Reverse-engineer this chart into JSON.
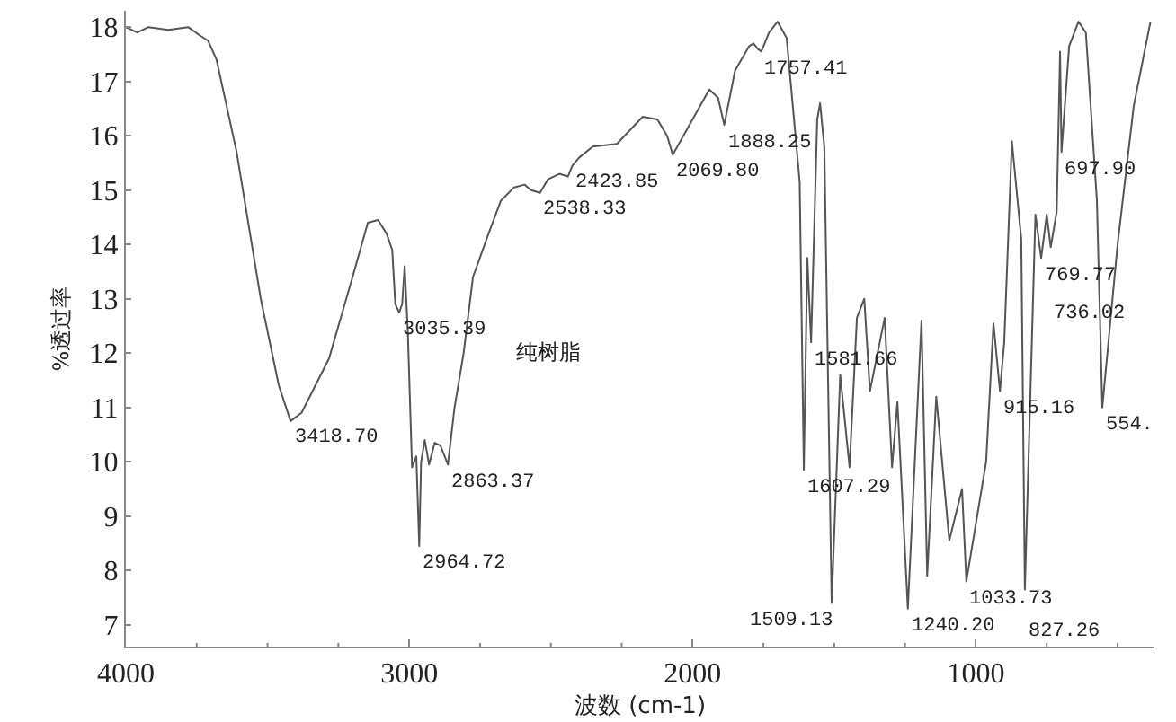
{
  "chart_data": {
    "type": "line",
    "xlabel": "波数 (cm-1)",
    "ylabel": "%透过率",
    "xlim": [
      4000,
      370
    ],
    "ylim": [
      6.6,
      18.3
    ],
    "xticks": [
      4000,
      3000,
      2000,
      1000,
      {
        "value": 3750,
        "label": null
      },
      {
        "value": 3500,
        "label": null
      },
      {
        "value": 3250,
        "label": null
      },
      {
        "value": 2750,
        "label": null
      },
      {
        "value": 2500,
        "label": null
      },
      {
        "value": 2250,
        "label": null
      },
      {
        "value": 1750,
        "label": null
      },
      {
        "value": 1500,
        "label": null
      },
      {
        "value": 1250,
        "label": null
      },
      {
        "value": 750,
        "label": null
      },
      {
        "value": 500,
        "label": null
      }
    ],
    "yticks": [
      7,
      8,
      9,
      10,
      11,
      12,
      13,
      14,
      15,
      16,
      17,
      18
    ],
    "grid": false,
    "legend": false,
    "marker": "none",
    "line_style": "solid",
    "series": [
      {
        "name": "纯树脂",
        "color": "#555555",
        "x": [
          4000,
          3960,
          3920,
          3850,
          3780,
          3740,
          3710,
          3680,
          3609,
          3524,
          3460,
          3418.7,
          3380,
          3283,
          3200,
          3146,
          3110,
          3080,
          3060,
          3049,
          3035.39,
          3025,
          3016,
          3005,
          2990,
          2975,
          2964.72,
          2958,
          2945,
          2930,
          2910,
          2890,
          2863.37,
          2840,
          2808,
          2775,
          2720,
          2677,
          2630,
          2593,
          2570,
          2538.33,
          2510,
          2470,
          2440,
          2423.85,
          2400,
          2352,
          2267,
          2176,
          2124,
          2090,
          2069.8,
          2000,
          1941,
          1910,
          1888.25,
          1850,
          1800,
          1785,
          1770,
          1757.41,
          1730,
          1700,
          1668,
          1622,
          1607.29,
          1595,
          1581.66,
          1560,
          1550,
          1535,
          1509.13,
          1479,
          1446,
          1420,
          1394,
          1374,
          1322,
          1296,
          1277,
          1240.2,
          1192,
          1172,
          1140,
          1094,
          1049,
          1033.73,
          964,
          938,
          915.16,
          900,
          873,
          840,
          827.26,
          790,
          769.77,
          750,
          736.02,
          715,
          703,
          697.9,
          671,
          638,
          612,
          573,
          554,
          500,
          443,
          384
        ],
        "values": [
          18.0,
          17.9,
          18.0,
          17.95,
          18.0,
          17.85,
          17.75,
          17.4,
          15.7,
          13.0,
          11.4,
          10.75,
          10.9,
          11.9,
          13.4,
          14.4,
          14.45,
          14.2,
          13.9,
          12.9,
          12.75,
          12.9,
          13.6,
          12.4,
          9.9,
          10.1,
          8.45,
          10.0,
          10.4,
          9.95,
          10.35,
          10.3,
          9.95,
          11.0,
          12.0,
          13.4,
          14.2,
          14.8,
          15.05,
          15.1,
          15.0,
          14.95,
          15.2,
          15.3,
          15.25,
          15.45,
          15.6,
          15.8,
          15.85,
          16.35,
          16.3,
          16.0,
          15.65,
          16.3,
          16.85,
          16.7,
          16.2,
          17.2,
          17.65,
          17.7,
          17.6,
          17.55,
          17.9,
          18.1,
          17.8,
          15.15,
          9.85,
          13.75,
          12.2,
          16.3,
          16.6,
          15.8,
          7.4,
          11.6,
          9.9,
          12.65,
          13.0,
          11.3,
          12.65,
          9.9,
          11.1,
          7.3,
          12.6,
          7.9,
          11.2,
          8.55,
          9.5,
          7.8,
          10.0,
          12.55,
          11.3,
          12.2,
          15.9,
          14.1,
          7.65,
          14.55,
          13.75,
          14.55,
          13.95,
          14.6,
          17.55,
          15.7,
          17.65,
          18.1,
          17.9,
          14.8,
          11.0,
          14.0,
          16.55,
          18.1
        ]
      }
    ],
    "annotations": [
      {
        "text": "3418.70",
        "x": 3418.7,
        "y": 10.75
      },
      {
        "text": "3035.39",
        "x": 3035.39,
        "y": 12.75
      },
      {
        "text": "2964.72",
        "x": 2964.72,
        "y": 8.45
      },
      {
        "text": "2863.37",
        "x": 2863.37,
        "y": 9.95
      },
      {
        "text": "2538.33",
        "x": 2538.33,
        "y": 14.95
      },
      {
        "text": "2423.85",
        "x": 2423.85,
        "y": 15.45
      },
      {
        "text": "2069.80",
        "x": 2069.8,
        "y": 15.65
      },
      {
        "text": "1888.25",
        "x": 1888.25,
        "y": 16.2
      },
      {
        "text": "1757.41",
        "x": 1757.41,
        "y": 17.55
      },
      {
        "text": "1607.29",
        "x": 1607.29,
        "y": 9.85
      },
      {
        "text": "1581.66",
        "x": 1581.66,
        "y": 12.2
      },
      {
        "text": "1509.13",
        "x": 1509.13,
        "y": 7.4
      },
      {
        "text": "1240.20",
        "x": 1240.2,
        "y": 7.3
      },
      {
        "text": "1033.73",
        "x": 1033.73,
        "y": 7.8
      },
      {
        "text": "915.16",
        "x": 915.16,
        "y": 11.3
      },
      {
        "text": "827.26",
        "x": 827.26,
        "y": 7.65
      },
      {
        "text": "769.77",
        "x": 769.77,
        "y": 13.75
      },
      {
        "text": "736.02",
        "x": 736.02,
        "y": 13.95
      },
      {
        "text": "697.90",
        "x": 697.9,
        "y": 15.7
      },
      {
        "text": "554.",
        "x": 554,
        "y": 11.0
      }
    ]
  }
}
